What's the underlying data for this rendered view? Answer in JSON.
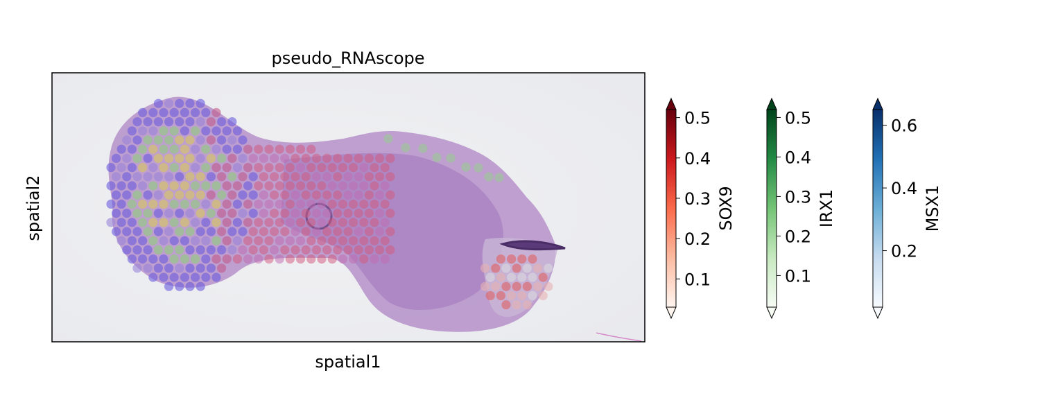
{
  "chart_data": {
    "type": "scatter",
    "title": "pseudo_RNAscope",
    "xlabel": "spatial1",
    "ylabel": "spatial2",
    "grid": false,
    "x_ticks_shown": false,
    "y_ticks_shown": false,
    "colorbars": [
      {
        "name": "SOX9",
        "cmap": "Reds",
        "range": [
          0.03,
          0.52
        ],
        "extend": "both",
        "ticks": [
          0.1,
          0.2,
          0.3,
          0.4,
          0.5
        ],
        "tick_labels": [
          "0.1",
          "0.2",
          "0.3",
          "0.4",
          "0.5"
        ],
        "colors": [
          "#fff5f0",
          "#fcbba1",
          "#fb6a4a",
          "#cb181d",
          "#67000d"
        ]
      },
      {
        "name": "IRX1",
        "cmap": "Greens",
        "range": [
          0.02,
          0.52
        ],
        "extend": "both",
        "ticks": [
          0.1,
          0.2,
          0.3,
          0.4,
          0.5
        ],
        "tick_labels": [
          "0.1",
          "0.2",
          "0.3",
          "0.4",
          "0.5"
        ],
        "colors": [
          "#f7fcf5",
          "#c7e9c0",
          "#74c476",
          "#238b45",
          "#00441b"
        ]
      },
      {
        "name": "MSX1",
        "cmap": "Blues",
        "range": [
          0.02,
          0.65
        ],
        "extend": "both",
        "ticks": [
          0.2,
          0.4,
          0.6
        ],
        "tick_labels": [
          "0.2",
          "0.4",
          "0.6"
        ],
        "colors": [
          "#f7fbff",
          "#c6dbef",
          "#6baed6",
          "#2171b5",
          "#08306b"
        ]
      }
    ]
  }
}
